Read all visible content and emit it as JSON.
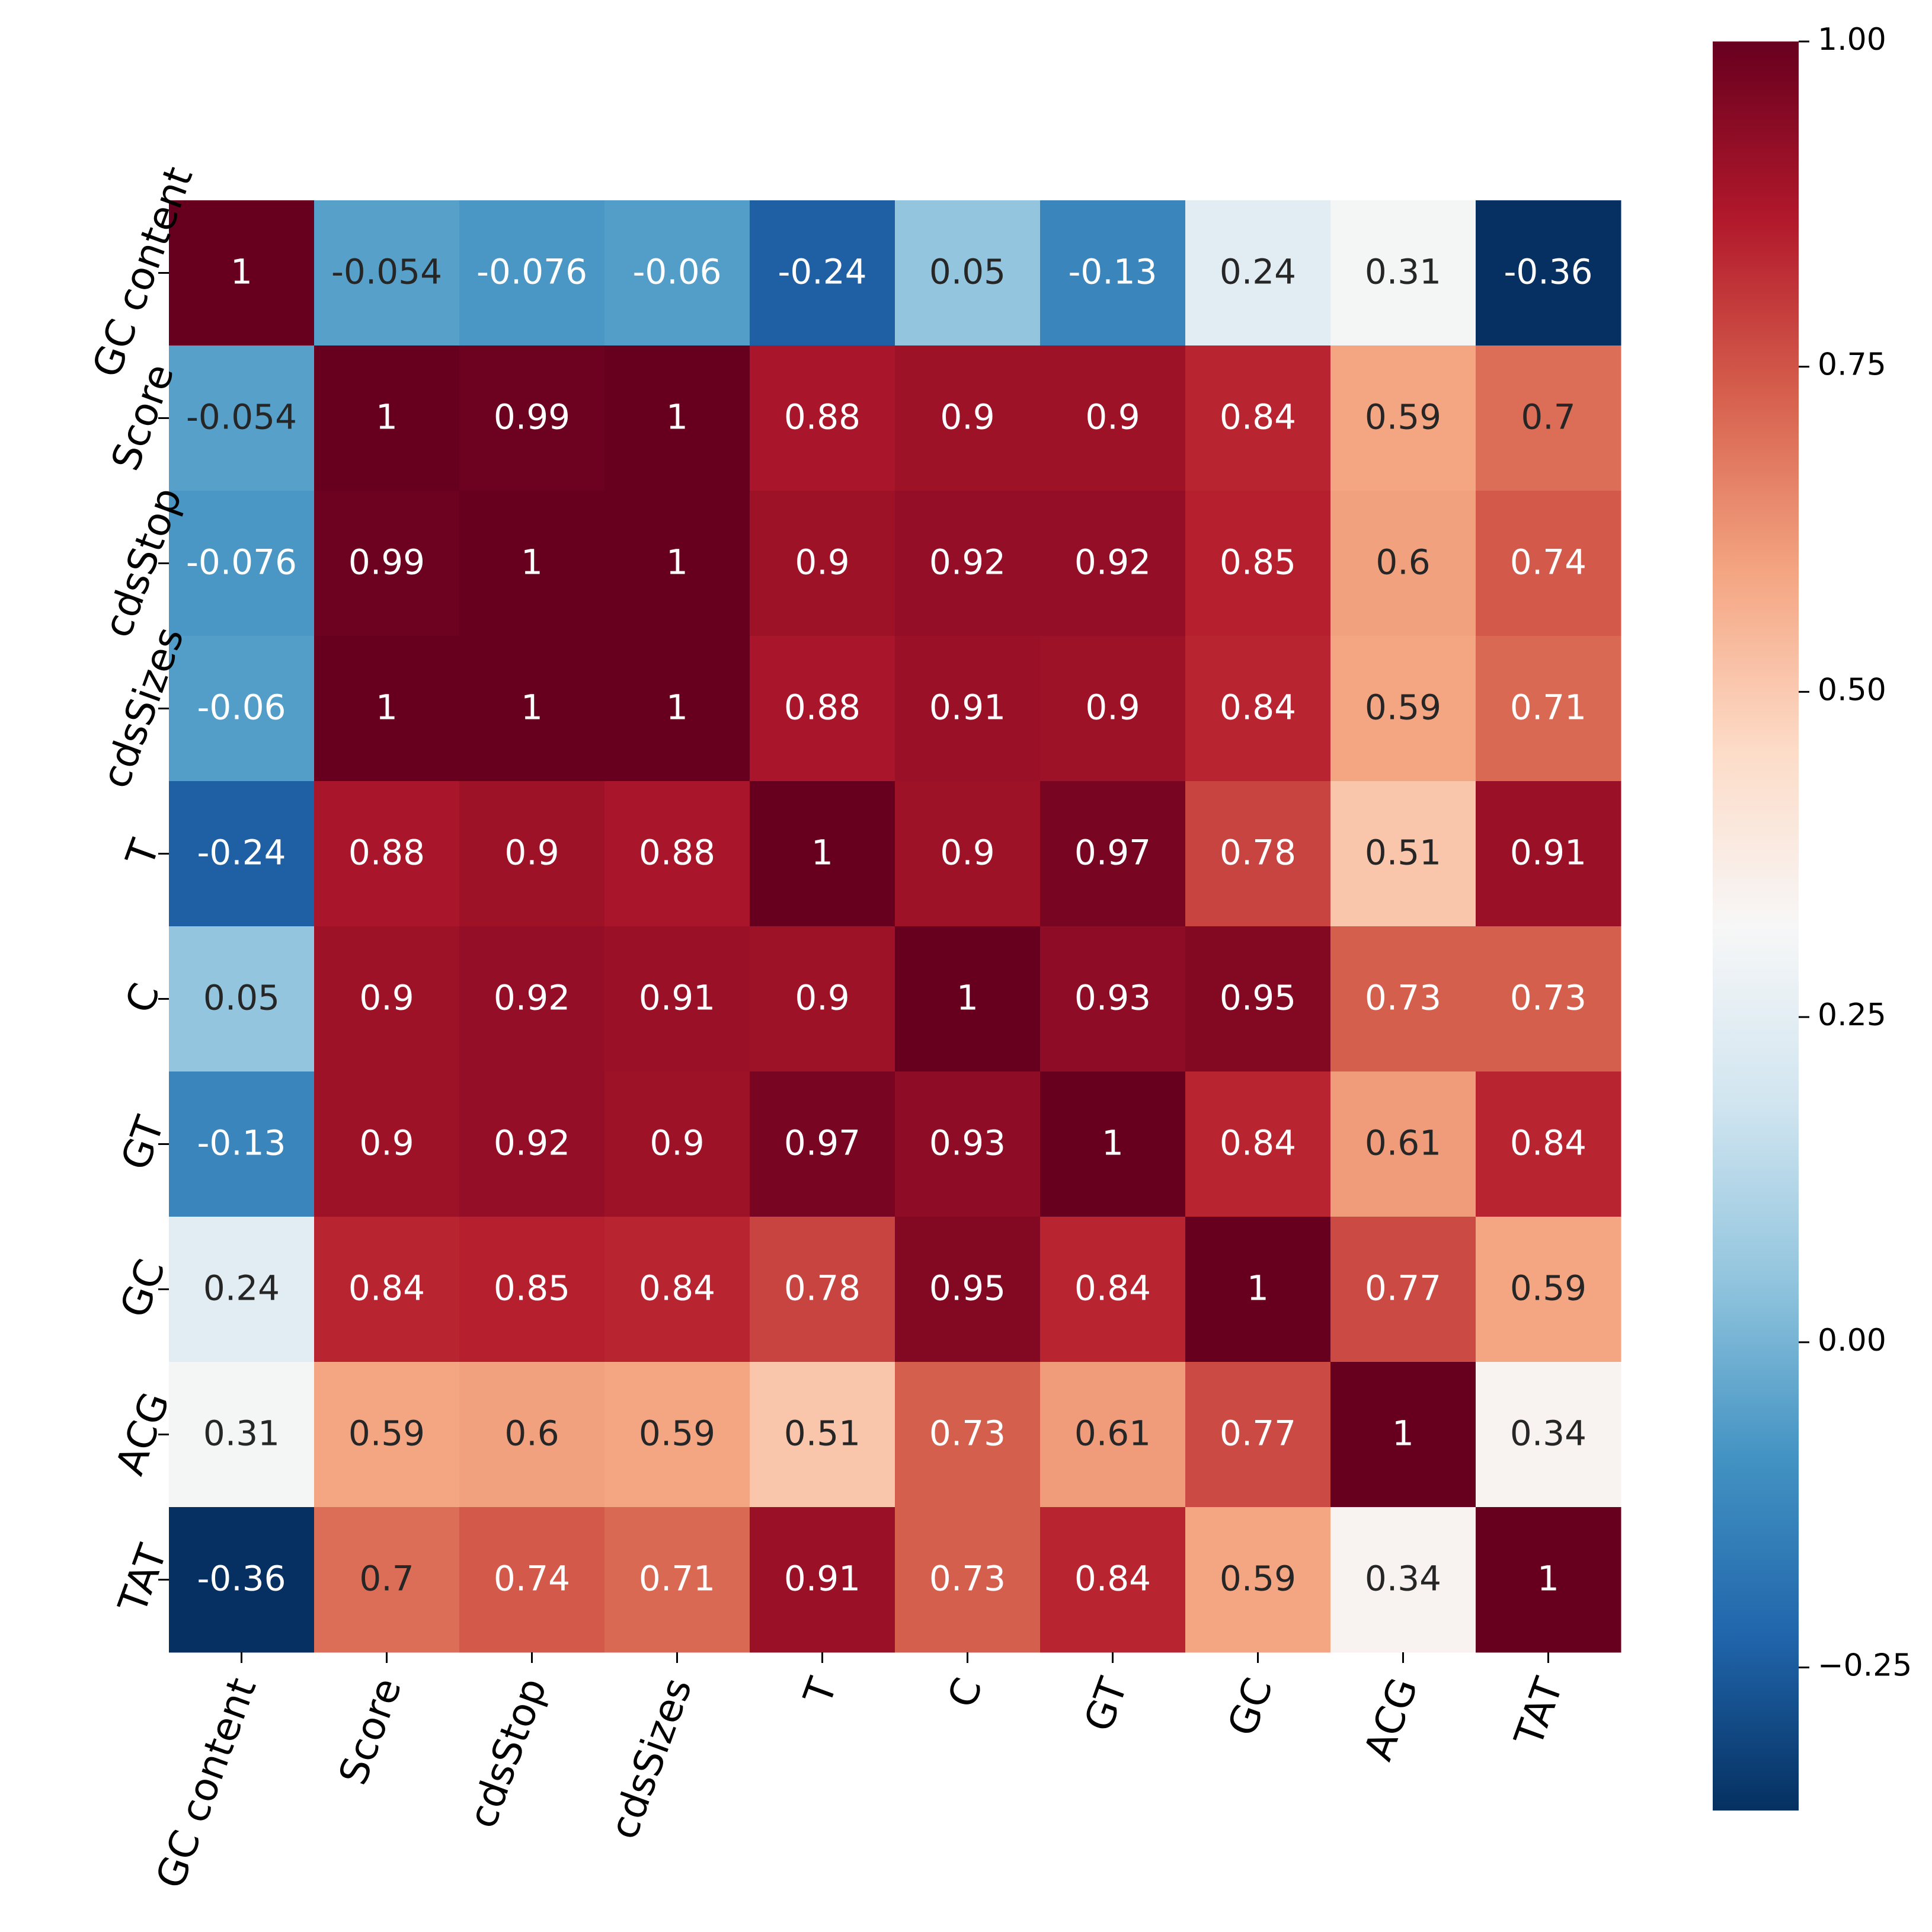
{
  "chart_data": {
    "type": "heatmap",
    "title": "",
    "xlabel": "",
    "ylabel": "",
    "labels": [
      "GC content",
      "Score",
      "cdsStop",
      "cdsSizes",
      "T",
      "C",
      "GT",
      "GC",
      "ACG",
      "TAT"
    ],
    "matrix": [
      [
        1,
        -0.054,
        -0.076,
        -0.06,
        -0.24,
        0.05,
        -0.13,
        0.24,
        0.31,
        -0.36
      ],
      [
        -0.054,
        1,
        0.99,
        1,
        0.88,
        0.9,
        0.9,
        0.84,
        0.59,
        0.7
      ],
      [
        -0.076,
        0.99,
        1,
        1,
        0.9,
        0.92,
        0.92,
        0.85,
        0.6,
        0.74
      ],
      [
        -0.06,
        1,
        1,
        1,
        0.88,
        0.91,
        0.9,
        0.84,
        0.59,
        0.71
      ],
      [
        -0.24,
        0.88,
        0.9,
        0.88,
        1,
        0.9,
        0.97,
        0.78,
        0.51,
        0.91
      ],
      [
        0.05,
        0.9,
        0.92,
        0.91,
        0.9,
        1,
        0.93,
        0.95,
        0.73,
        0.73
      ],
      [
        -0.13,
        0.9,
        0.92,
        0.9,
        0.97,
        0.93,
        1,
        0.84,
        0.61,
        0.84
      ],
      [
        0.24,
        0.84,
        0.85,
        0.84,
        0.78,
        0.95,
        0.84,
        1,
        0.77,
        0.59
      ],
      [
        0.31,
        0.59,
        0.6,
        0.59,
        0.51,
        0.73,
        0.61,
        0.77,
        1,
        0.34
      ],
      [
        -0.36,
        0.7,
        0.74,
        0.71,
        0.91,
        0.73,
        0.84,
        0.59,
        0.34,
        1
      ]
    ],
    "colorbar": {
      "range": [
        -0.36,
        1.0
      ],
      "ticks": [
        "1.00",
        "0.75",
        "0.50",
        "0.25",
        "0.00",
        "−0.25"
      ],
      "tick_values": [
        1.0,
        0.75,
        0.5,
        0.25,
        0.0,
        -0.25
      ],
      "colormap": "RdBu_r",
      "stops": [
        "#053061",
        "#2166ac",
        "#4393c3",
        "#92c5de",
        "#d1e5f0",
        "#f7f7f7",
        "#fddbc7",
        "#f4a582",
        "#d6604d",
        "#b2182b",
        "#67001f"
      ]
    }
  }
}
